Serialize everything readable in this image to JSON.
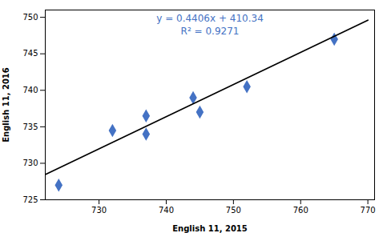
{
  "chart_data": {
    "type": "scatter",
    "series": [
      {
        "type": "scatter",
        "x": [
          724,
          732,
          737,
          737,
          744,
          745,
          752,
          765
        ],
        "values": [
          727,
          734.5,
          734,
          736.5,
          739,
          737,
          740.5,
          747
        ],
        "color": "#4472C4",
        "marker": "diamond"
      },
      {
        "type": "line",
        "x": [
          722,
          770
        ],
        "values": [
          728.4532,
          749.602
        ],
        "color": "black"
      }
    ],
    "annotations": [
      "y = 0.4406x + 410.34",
      "R² = 0.9271"
    ],
    "xlabel": "English 11, 2015",
    "ylabel": "English 11, 2016",
    "xlim": [
      722,
      771
    ],
    "ylim": [
      725,
      751
    ],
    "xticks": [
      730,
      740,
      750,
      760,
      770
    ],
    "yticks": [
      725,
      730,
      735,
      740,
      745,
      750
    ],
    "grid": false
  }
}
